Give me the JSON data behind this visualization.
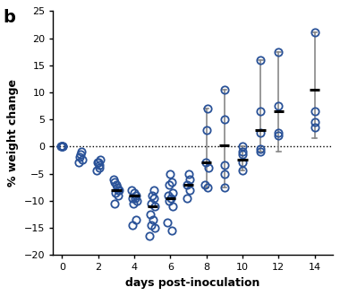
{
  "title_label": "b",
  "xlabel": "days post-inoculation",
  "ylabel": "% weight change",
  "ylim": [
    -20,
    25
  ],
  "xlim": [
    -0.5,
    15.0
  ],
  "yticks": [
    -20,
    -15,
    -10,
    -5,
    0,
    5,
    10,
    15,
    20,
    25
  ],
  "xticks": [
    0,
    2,
    4,
    6,
    8,
    10,
    12,
    14
  ],
  "dotted_line_y": 0,
  "marker_color": "#2A5298",
  "marker_facecolor": "none",
  "marker_size": 6,
  "marker_linewidth": 1.3,
  "errorbar_color": "#888888",
  "errorbar_linewidth": 1.2,
  "mean_color": "black",
  "mean_linewidth": 2.2,
  "scatter_data": {
    "0": [
      0.0,
      0.0,
      0.0,
      0.0,
      0.0
    ],
    "1": [
      -1.0,
      -2.0,
      -2.5,
      -3.0,
      -1.5
    ],
    "2": [
      -3.0,
      -4.0,
      -4.5,
      -3.5,
      -3.0,
      -2.5
    ],
    "3": [
      -6.5,
      -7.0,
      -8.0,
      -8.5,
      -7.5,
      -8.0,
      -6.0,
      -9.0,
      -10.5
    ],
    "4": [
      -8.5,
      -9.0,
      -9.5,
      -10.0,
      -8.0,
      -9.5,
      -10.5,
      -13.5,
      -14.5
    ],
    "5": [
      -9.0,
      -9.5,
      -10.5,
      -11.0,
      -12.5,
      -13.5,
      -14.5,
      -15.0,
      -16.5,
      -8.0
    ],
    "6": [
      -5.0,
      -6.5,
      -7.0,
      -8.5,
      -9.0,
      -9.5,
      -10.0,
      -11.0,
      -14.0,
      -15.5
    ],
    "7": [
      -5.0,
      -6.0,
      -7.0,
      -8.0,
      -9.5
    ],
    "8": [
      3.0,
      7.0,
      -3.0,
      -4.0,
      -7.0,
      -7.5
    ],
    "9": [
      10.5,
      5.0,
      -3.5,
      -5.0,
      -7.5
    ],
    "10": [
      0.0,
      -1.0,
      -1.5,
      -3.0,
      -4.5
    ],
    "11": [
      16.0,
      6.5,
      2.5,
      -0.5,
      -1.0
    ],
    "12": [
      17.5,
      7.5,
      2.5,
      2.0
    ],
    "14": [
      21.0,
      6.5,
      4.5,
      3.5
    ]
  },
  "errorbar_data": {
    "3": {
      "mean": -8.0,
      "low": -10.8,
      "high": -5.2,
      "has_bar": false
    },
    "4": {
      "mean": -9.0,
      "low": -14.5,
      "high": -8.0,
      "has_bar": false
    },
    "5": {
      "mean": -11.0,
      "low": -16.5,
      "high": -8.0,
      "has_bar": false
    },
    "6": {
      "mean": -9.5,
      "low": -15.5,
      "high": -5.0,
      "has_bar": false
    },
    "7": {
      "mean": -7.0,
      "low": -9.5,
      "high": -5.0,
      "has_bar": false
    },
    "8": {
      "mean": -3.0,
      "low": -7.5,
      "high": 7.0,
      "has_bar": true
    },
    "9": {
      "mean": 0.2,
      "low": -7.5,
      "high": 10.5,
      "has_bar": true
    },
    "10": {
      "mean": -2.5,
      "low": -4.5,
      "high": 0.0,
      "has_bar": true
    },
    "11": {
      "mean": 3.0,
      "low": -1.0,
      "high": 16.0,
      "has_bar": true
    },
    "12": {
      "mean": 6.5,
      "low": -1.0,
      "high": 17.5,
      "has_bar": true
    },
    "14": {
      "mean": 10.5,
      "low": 1.5,
      "high": 21.0,
      "has_bar": true
    }
  },
  "background_color": "#ffffff"
}
